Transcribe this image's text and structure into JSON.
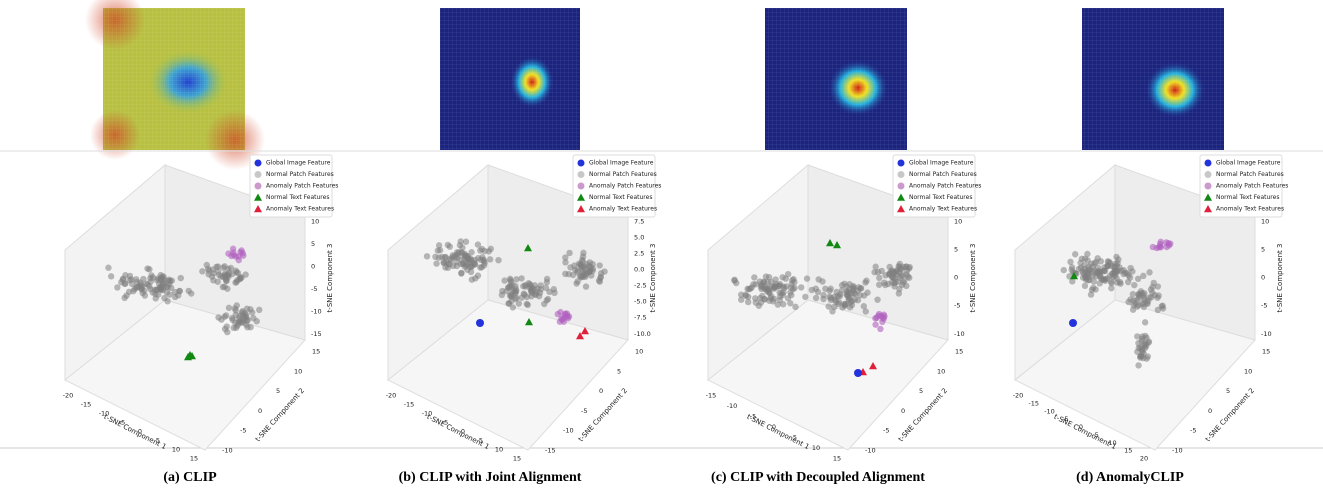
{
  "panels": [
    {
      "caption": "(a) CLIP",
      "legend": [
        "Global Image Feature",
        "Normal Patch Features",
        "Anomaly Patch Features",
        "Normal Text Features",
        "Anomaly Text Features"
      ],
      "x_label": "t-SNE Component 1",
      "y_label": "t-SNE Component 2",
      "z_label": "t-SNE Component 3",
      "x_ticks": [
        "-20",
        "-15",
        "-10",
        "-5",
        "0",
        "5",
        "10",
        "15"
      ],
      "y_ticks": [
        "-10",
        "-5",
        "0",
        "5",
        "10",
        "15"
      ],
      "z_ticks": [
        "-15",
        "-10",
        "-5",
        "0",
        "5",
        "10"
      ]
    },
    {
      "caption": "(b) CLIP with Joint Alignment",
      "legend": [
        "Global Image Feature",
        "Normal Patch Features",
        "Anomaly Patch Features",
        "Normal Text Features",
        "Anomaly Text Features"
      ],
      "x_label": "t-SNE Component 1",
      "y_label": "t-SNE Component 2",
      "z_label": "t-SNE Component 3",
      "x_ticks": [
        "-20",
        "-15",
        "-10",
        "-5",
        "0",
        "5",
        "10",
        "15"
      ],
      "y_ticks": [
        "-15",
        "-10",
        "-5",
        "0",
        "5",
        "10"
      ],
      "z_ticks": [
        "-10.0",
        "-7.5",
        "-5.0",
        "-2.5",
        "0.0",
        "2.5",
        "5.0",
        "7.5"
      ]
    },
    {
      "caption": "(c) CLIP with Decoupled Alignment",
      "legend": [
        "Global Image Feature",
        "Normal Patch Features",
        "Anomaly Patch Features",
        "Normal Text Features",
        "Anomaly Text Features"
      ],
      "x_label": "t-SNE Component 1",
      "y_label": "t-SNE Component 2",
      "z_label": "t-SNE Component 3",
      "x_ticks": [
        "-15",
        "-10",
        "-5",
        "0",
        "5",
        "10",
        "15"
      ],
      "y_ticks": [
        "-10",
        "-5",
        "0",
        "5",
        "10",
        "15"
      ],
      "z_ticks": [
        "-10",
        "-5",
        "0",
        "5",
        "10"
      ]
    },
    {
      "caption": "(d) AnomalyCLIP",
      "legend": [
        "Global Image Feature",
        "Normal Patch Features",
        "Anomaly Patch Features",
        "Normal Text Features",
        "Anomaly Text Features"
      ],
      "x_label": "t-SNE Component 1",
      "y_label": "t-SNE Component 2",
      "z_label": "t-SNE Component 3",
      "x_ticks": [
        "-20",
        "-15",
        "-10",
        "-5",
        "0",
        "5",
        "10",
        "15",
        "20"
      ],
      "y_ticks": [
        "-10",
        "-5",
        "0",
        "5",
        "10",
        "15"
      ],
      "z_ticks": [
        "-10",
        "-5",
        "0",
        "5",
        "10"
      ]
    }
  ]
}
